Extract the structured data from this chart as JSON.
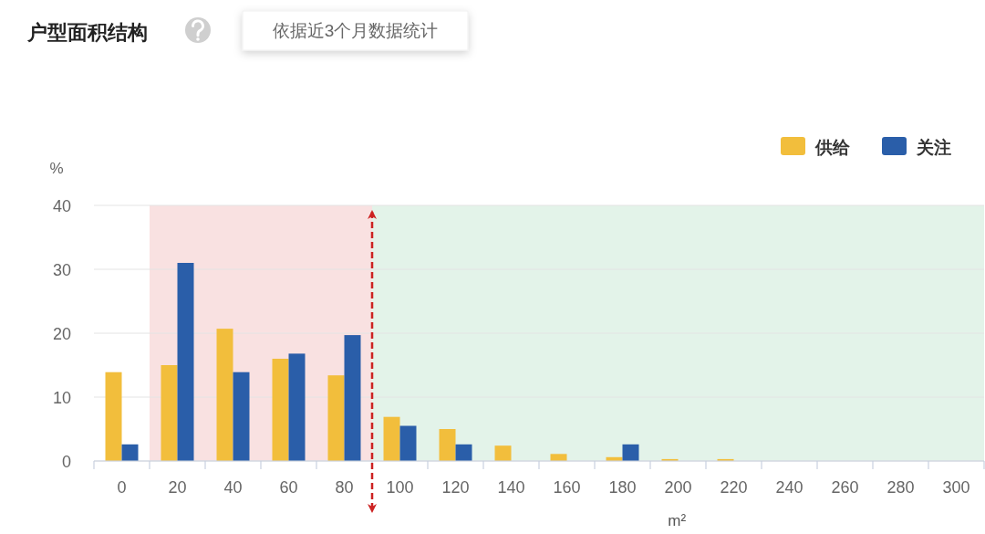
{
  "chart_data": {
    "type": "bar",
    "title": "户型面积结构",
    "annotations": [
      "依据近3个月数据统计"
    ],
    "xlabel": "m²",
    "ylabel": "%",
    "x": [
      0,
      20,
      40,
      60,
      80,
      100,
      120,
      140,
      160,
      180,
      200,
      220
    ],
    "series": [
      {
        "name": "供给",
        "color": "#f2be3c",
        "values": [
          13.9,
          15.0,
          20.7,
          16.0,
          13.4,
          6.9,
          5.0,
          2.4,
          1.1,
          0.6,
          0.3,
          0.3
        ]
      },
      {
        "name": "关注",
        "color": "#2a5ea9",
        "values": [
          2.6,
          31.0,
          13.9,
          16.8,
          19.7,
          5.5,
          2.6,
          0,
          0,
          2.6,
          0,
          0
        ]
      }
    ],
    "xlim": [
      -10,
      310
    ],
    "xticks": [
      {
        "value": -10,
        "label": null
      },
      0,
      {
        "value": 10,
        "label": null
      },
      20,
      {
        "value": 30,
        "label": null
      },
      40,
      {
        "value": 50,
        "label": null
      },
      60,
      {
        "value": 70,
        "label": null
      },
      80,
      {
        "value": 90,
        "label": null
      },
      100,
      {
        "value": 110,
        "label": null
      },
      120,
      {
        "value": 130,
        "label": null
      },
      140,
      {
        "value": 150,
        "label": null
      },
      160,
      {
        "value": 170,
        "label": null
      },
      180,
      {
        "value": 190,
        "label": null
      },
      200,
      {
        "value": 210,
        "label": null
      },
      220,
      {
        "value": 230,
        "label": null
      },
      240,
      {
        "value": 250,
        "label": null
      },
      260,
      {
        "value": 270,
        "label": null
      },
      280,
      {
        "value": 290,
        "label": null
      },
      300,
      {
        "value": 310,
        "label": null
      }
    ],
    "ylim": [
      0,
      40
    ],
    "yticks": [
      0,
      10,
      20,
      30,
      40
    ],
    "grid": "y",
    "legend": "top right",
    "ref_lines": [
      {
        "axis": "x",
        "value": 90,
        "color": "#cc2222",
        "line_style": "dashed"
      }
    ],
    "bands": [
      {
        "axis": "x",
        "from": 10,
        "to": 90,
        "color": "#f9e1e1"
      },
      {
        "axis": "x",
        "from": 90,
        "to": 310,
        "color": "#e3f3e9"
      }
    ]
  }
}
